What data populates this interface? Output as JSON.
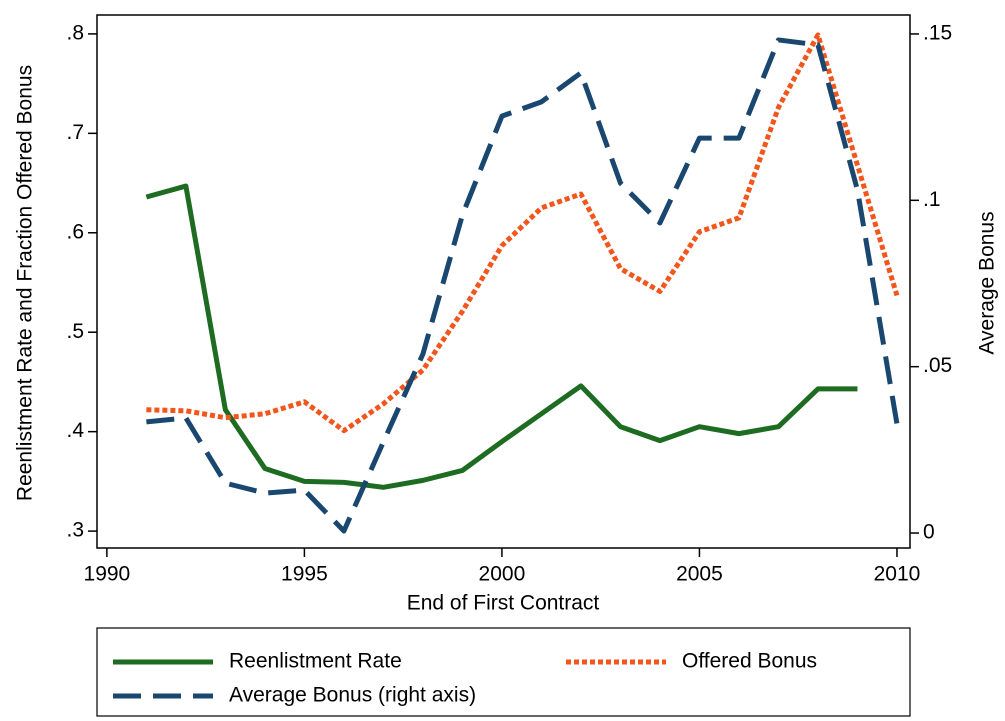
{
  "chart_data": {
    "type": "line",
    "x": [
      1991,
      1992,
      1993,
      1994,
      1995,
      1996,
      1997,
      1998,
      1999,
      2000,
      2001,
      2002,
      2003,
      2004,
      2005,
      2006,
      2007,
      2008,
      2009,
      2010
    ],
    "series": [
      {
        "name": "Reenlistment Rate",
        "color": "#1e6b22",
        "dash": "solid",
        "values": [
          0.636,
          0.647,
          0.422,
          0.363,
          0.35,
          0.349,
          0.344,
          0.351,
          0.361,
          0.39,
          0.418,
          0.446,
          0.405,
          0.391,
          0.405,
          0.398,
          0.405,
          0.443,
          0.443,
          null
        ]
      },
      {
        "name": "Offered Bonus",
        "color": "#f2561d",
        "dash": "dotted",
        "values": [
          0.422,
          0.421,
          0.414,
          0.418,
          0.43,
          0.401,
          0.428,
          0.462,
          0.521,
          0.587,
          0.625,
          0.639,
          0.564,
          0.541,
          0.601,
          0.615,
          0.726,
          0.799,
          0.668,
          0.537
        ]
      },
      {
        "name": "Average Bonus (right axis)",
        "color": "#1a476f",
        "dash": "dashed",
        "axis": "y2",
        "values": [
          0.0334,
          0.0346,
          0.015,
          0.012,
          0.0129,
          0.0006,
          0.0274,
          0.0538,
          0.0956,
          0.1253,
          0.1296,
          0.1383,
          0.1052,
          0.0932,
          0.1187,
          0.1187,
          0.1482,
          0.1467,
          0.1031,
          0.0328
        ]
      }
    ],
    "xlabel": "End of First Contract",
    "ylabel": "Reenlistment Rate and Fraction Offered Bonus",
    "y2label": "Average Bonus",
    "xlim": [
      1989.75,
      2010.33
    ],
    "xticks": [
      1990,
      1995,
      2000,
      2005,
      2010
    ],
    "ylim": [
      0.283,
      0.819
    ],
    "yticks": [
      {
        "value": 0.3,
        "label": ".3"
      },
      {
        "value": 0.4,
        "label": ".4"
      },
      {
        "value": 0.5,
        "label": ".5"
      },
      {
        "value": 0.6,
        "label": ".6"
      },
      {
        "value": 0.7,
        "label": ".7"
      },
      {
        "value": 0.8,
        "label": ".8"
      }
    ],
    "y2lim": [
      -0.0045,
      0.1557
    ],
    "y2ticks": [
      0,
      {
        "value": 0.05,
        "label": ".05"
      },
      {
        "value": 0.1,
        "label": ".1"
      },
      {
        "value": 0.15,
        "label": ".15"
      }
    ],
    "legend": "bottom"
  }
}
